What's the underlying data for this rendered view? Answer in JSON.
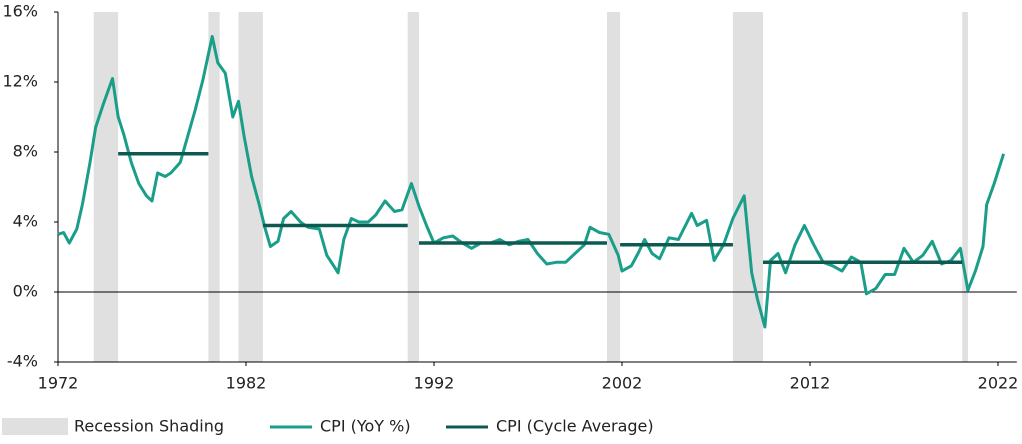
{
  "chart_data": {
    "type": "line",
    "xlim": [
      1972,
      2023
    ],
    "xticks": [
      1972,
      1982,
      1992,
      2002,
      2012,
      2022
    ],
    "ylim": [
      -4,
      16
    ],
    "yticks": [
      {
        "value": -4,
        "label": "-4%"
      },
      {
        "value": 0,
        "label": "0%"
      },
      {
        "value": 4,
        "label": "4%"
      },
      {
        "value": 8,
        "label": "8%"
      },
      {
        "value": 12,
        "label": "12%"
      },
      {
        "value": 16,
        "label": "16%"
      }
    ],
    "recessions": {
      "name": "Recession Shading",
      "color": "#e0e0e0",
      "spans": [
        [
          1973.9,
          1975.2
        ],
        [
          1980.0,
          1980.6
        ],
        [
          1981.6,
          1982.9
        ],
        [
          1990.6,
          1991.2
        ],
        [
          2001.2,
          2001.9
        ],
        [
          2007.9,
          2009.5
        ],
        [
          2020.1,
          2020.4
        ]
      ]
    },
    "series": [
      {
        "name": "CPI (YoY %)",
        "color": "#1a9e8a",
        "x": [
          1972.0,
          1972.3,
          1972.6,
          1973.0,
          1973.3,
          1973.7,
          1974.0,
          1974.4,
          1974.9,
          1975.2,
          1975.5,
          1975.9,
          1976.3,
          1976.7,
          1977.0,
          1977.3,
          1977.7,
          1978.0,
          1978.5,
          1978.9,
          1979.3,
          1979.7,
          1980.2,
          1980.5,
          1980.9,
          1981.3,
          1981.6,
          1981.9,
          1982.3,
          1982.7,
          1983.0,
          1983.3,
          1983.7,
          1984.0,
          1984.4,
          1984.9,
          1985.3,
          1985.9,
          1986.3,
          1986.6,
          1986.9,
          1987.2,
          1987.6,
          1988.0,
          1988.5,
          1988.9,
          1989.4,
          1989.9,
          1990.3,
          1990.8,
          1991.2,
          1991.6,
          1992.0,
          1992.5,
          1993.0,
          1993.5,
          1994.0,
          1994.5,
          1995.0,
          1995.5,
          1996.0,
          1996.5,
          1997.0,
          1997.5,
          1998.0,
          1998.5,
          1999.0,
          1999.5,
          2000.0,
          2000.3,
          2000.8,
          2001.3,
          2001.8,
          2002.0,
          2002.5,
          2002.9,
          2003.2,
          2003.6,
          2004.0,
          2004.5,
          2005.0,
          2005.7,
          2006.0,
          2006.5,
          2006.9,
          2007.4,
          2007.9,
          2008.5,
          2008.9,
          2009.2,
          2009.6,
          2009.9,
          2010.3,
          2010.7,
          2011.2,
          2011.7,
          2012.2,
          2012.7,
          2013.2,
          2013.7,
          2014.2,
          2014.7,
          2015.0,
          2015.5,
          2016.0,
          2016.5,
          2017.0,
          2017.5,
          2018.0,
          2018.5,
          2019.0,
          2019.5,
          2020.0,
          2020.4,
          2020.8,
          2021.2,
          2021.4,
          2021.8,
          2022.3
        ],
        "values": [
          3.3,
          3.4,
          2.8,
          3.6,
          5.0,
          7.4,
          9.4,
          10.7,
          12.2,
          10.0,
          9.0,
          7.4,
          6.2,
          5.5,
          5.2,
          6.8,
          6.6,
          6.8,
          7.4,
          8.9,
          10.4,
          12.1,
          14.6,
          13.1,
          12.5,
          10.0,
          10.9,
          8.9,
          6.6,
          5.0,
          3.7,
          2.6,
          2.9,
          4.2,
          4.6,
          4.0,
          3.7,
          3.6,
          2.1,
          1.6,
          1.1,
          3.0,
          4.2,
          4.0,
          4.0,
          4.4,
          5.2,
          4.6,
          4.7,
          6.2,
          4.9,
          3.8,
          2.8,
          3.1,
          3.2,
          2.8,
          2.5,
          2.8,
          2.8,
          3.0,
          2.7,
          2.9,
          3.0,
          2.2,
          1.6,
          1.7,
          1.7,
          2.2,
          2.7,
          3.7,
          3.4,
          3.3,
          2.1,
          1.2,
          1.5,
          2.3,
          3.0,
          2.2,
          1.9,
          3.1,
          3.0,
          4.5,
          3.8,
          4.1,
          1.8,
          2.7,
          4.2,
          5.5,
          1.1,
          -0.4,
          -2.0,
          1.8,
          2.2,
          1.1,
          2.7,
          3.8,
          2.7,
          1.7,
          1.5,
          1.2,
          2.0,
          1.7,
          -0.1,
          0.2,
          1.0,
          1.0,
          2.5,
          1.7,
          2.1,
          2.9,
          1.6,
          1.8,
          2.5,
          0.1,
          1.2,
          2.6,
          5.0,
          6.2,
          7.9
        ]
      }
    ],
    "cycle_average": {
      "name": "CPI (Cycle Average)",
      "color": "#0f5a50",
      "segments": [
        {
          "x": [
            1975.2,
            1980.0
          ],
          "value": 7.9
        },
        {
          "x": [
            1982.9,
            1990.6
          ],
          "value": 3.8
        },
        {
          "x": [
            1991.2,
            2001.2
          ],
          "value": 2.8
        },
        {
          "x": [
            2001.9,
            2007.9
          ],
          "value": 2.7
        },
        {
          "x": [
            2009.5,
            2020.1
          ],
          "value": 1.7
        }
      ]
    }
  }
}
